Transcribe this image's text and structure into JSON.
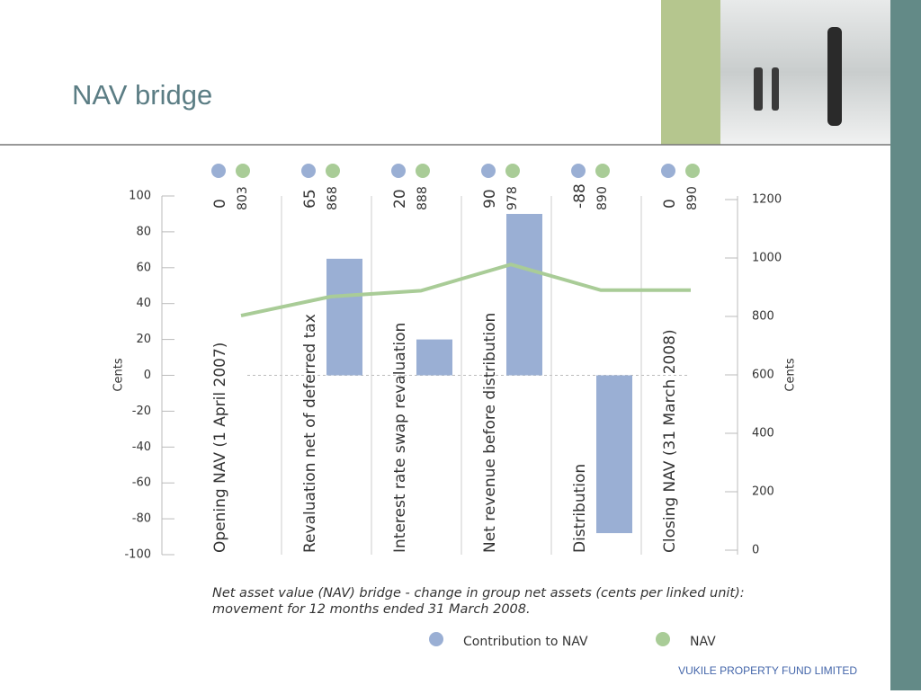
{
  "title": "NAV bridge",
  "footer": "VUKILE PROPERTY FUND LIMITED",
  "chart_data": {
    "type": "bar",
    "categories": [
      "Opening NAV (1 April 2007)",
      "Revaluation net of deferred tax",
      "Interest rate swap revaluation",
      "Net revenue before distribution",
      "Distribution",
      "Closing NAV (31 March 2008)"
    ],
    "series": [
      {
        "name": "Contribution to NAV",
        "color": "#9aafd4",
        "values": [
          0,
          65,
          20,
          90,
          -88,
          0
        ]
      },
      {
        "name": "NAV",
        "color": "#a9cc97",
        "type": "line",
        "axis": "y2",
        "values": [
          803,
          868,
          888,
          978,
          890,
          890
        ]
      }
    ],
    "ylabel": "Cents",
    "y2label": "Cents",
    "ylim": [
      -100,
      100
    ],
    "yticks": [
      -100,
      -80,
      -60,
      -40,
      -20,
      0,
      20,
      40,
      60,
      80,
      100
    ],
    "y2lim": [
      0,
      1200
    ],
    "y2ticks": [
      0,
      200,
      400,
      600,
      800,
      1000,
      1200
    ],
    "caption": [
      "Net asset value (NAV) bridge - change in group net assets (cents per linked unit):",
      "movement for 12 months ended 31 March 2008."
    ],
    "legend": "bottom"
  }
}
